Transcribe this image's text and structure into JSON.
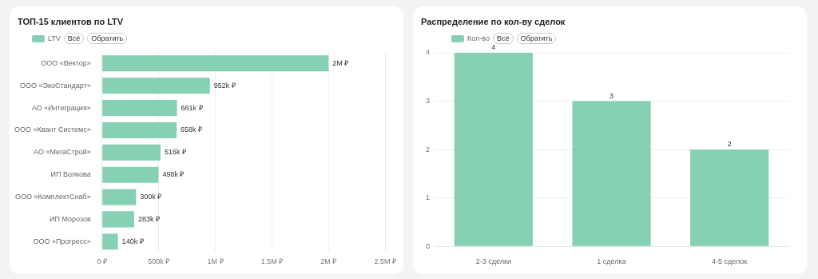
{
  "chart_data": [
    {
      "type": "bar",
      "orientation": "horizontal",
      "title": "ТОП-15 клиентов по LTV",
      "categories": [
        "ООО «Вектор»",
        "ООО «ЭкоСтандарт»",
        "АО «Интеграция»",
        "ООО «Квант Системс»",
        "АО «МегаСтрой»",
        "ИП Волкова",
        "ООО «КомплектСнаб»",
        "ИП Морозов",
        "ООО «Прогресс»"
      ],
      "series": [
        {
          "name": "LTV",
          "color": "#86d0b4",
          "values": [
            2000000,
            952000,
            661000,
            658000,
            516000,
            498000,
            300000,
            283000,
            140000
          ]
        }
      ],
      "value_labels": [
        "2M ₽",
        "952k ₽",
        "661k ₽",
        "658k ₽",
        "516k ₽",
        "498k ₽",
        "300k ₽",
        "283k ₽",
        "140k ₽"
      ],
      "xlim": [
        0,
        2500000
      ],
      "xticks": [
        {
          "value": 0,
          "label": "0 ₽"
        },
        {
          "value": 500000,
          "label": "500k ₽"
        },
        {
          "value": 1000000,
          "label": "1M ₽"
        },
        {
          "value": 1500000,
          "label": "1.5M ₽"
        },
        {
          "value": 2000000,
          "label": "2M ₽"
        },
        {
          "value": 2500000,
          "label": "2.5M ₽"
        }
      ],
      "grid": "x",
      "legend": "top left",
      "annotations": [
        "Всё",
        "Обратить"
      ]
    },
    {
      "type": "bar",
      "title": "Распределение по кол-ву сделок",
      "categories": [
        "2-3 сделки",
        "1 сделка",
        "4-5 сделок"
      ],
      "series": [
        {
          "name": "Кол-во",
          "color": "#86d0b4",
          "values": [
            4,
            3,
            2
          ]
        }
      ],
      "data_labels": true,
      "ylim": [
        0,
        4
      ],
      "yticks": [
        0,
        1,
        2,
        3,
        4
      ],
      "grid": "y",
      "legend": "top left",
      "annotations": [
        "Всё",
        "Обратить"
      ]
    }
  ]
}
